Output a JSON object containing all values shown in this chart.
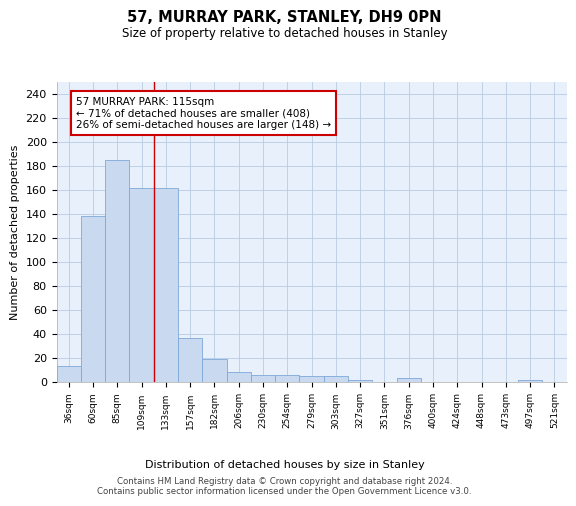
{
  "title1": "57, MURRAY PARK, STANLEY, DH9 0PN",
  "title2": "Size of property relative to detached houses in Stanley",
  "xlabel": "Distribution of detached houses by size in Stanley",
  "ylabel": "Number of detached properties",
  "categories": [
    "36sqm",
    "60sqm",
    "85sqm",
    "109sqm",
    "133sqm",
    "157sqm",
    "182sqm",
    "206sqm",
    "230sqm",
    "254sqm",
    "279sqm",
    "303sqm",
    "327sqm",
    "351sqm",
    "376sqm",
    "400sqm",
    "424sqm",
    "448sqm",
    "473sqm",
    "497sqm",
    "521sqm"
  ],
  "values": [
    13,
    138,
    185,
    162,
    162,
    37,
    19,
    8,
    6,
    6,
    5,
    5,
    2,
    0,
    3,
    0,
    0,
    0,
    0,
    2,
    0
  ],
  "bar_color": "#c9d9f0",
  "bar_edge_color": "#7da8d8",
  "bar_linewidth": 0.6,
  "red_line_x": 3.5,
  "annotation_text": "57 MURRAY PARK: 115sqm\n← 71% of detached houses are smaller (408)\n26% of semi-detached houses are larger (148) →",
  "annotation_box_color": "white",
  "annotation_box_edge_color": "#cc0000",
  "red_line_color": "#cc0000",
  "ylim": [
    0,
    250
  ],
  "yticks": [
    0,
    20,
    40,
    60,
    80,
    100,
    120,
    140,
    160,
    180,
    200,
    220,
    240
  ],
  "grid_color": "#b8cce4",
  "background_color": "#e8f0fb",
  "footer1": "Contains HM Land Registry data © Crown copyright and database right 2024.",
  "footer2": "Contains public sector information licensed under the Open Government Licence v3.0."
}
